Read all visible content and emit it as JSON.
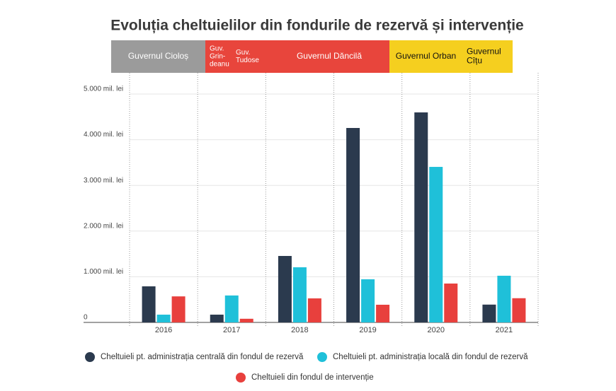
{
  "chart_data": {
    "type": "bar",
    "title": "Evoluția cheltuielilor din fondurile de rezervă și intervenție",
    "governments": [
      {
        "lines": [
          "Guvernul Cioloș"
        ],
        "color": "#9b9b9b",
        "text_color": "#ffffff"
      },
      {
        "lines": [
          "Guv.",
          "Grin-",
          "deanu"
        ],
        "color": "#e8453c",
        "text_color": "#ffffff"
      },
      {
        "lines": [
          "Guv.",
          "Tudose"
        ],
        "color": "#e8453c",
        "text_color": "#ffffff"
      },
      {
        "lines": [
          "Guvernul Dăncilă"
        ],
        "color": "#e8453c",
        "text_color": "#ffffff"
      },
      {
        "lines": [
          "Guvernul Orban"
        ],
        "color": "#f5cf1f",
        "text_color": "#111111"
      },
      {
        "lines": [
          "Guvernul",
          "Cîțu"
        ],
        "color": "#f5cf1f",
        "text_color": "#111111"
      }
    ],
    "categories": [
      "2016",
      "2017",
      "2018",
      "2019",
      "2020",
      "2021"
    ],
    "series": [
      {
        "name": "Cheltuieli pt. administrația centrală din fondul de rezervă",
        "color": "#2b3a4e",
        "values": [
          790,
          170,
          1455,
          4257,
          4598,
          390
        ]
      },
      {
        "name": "Cheltuieli pt. administrația locală din fondul de rezervă",
        "color": "#1fc0d9",
        "values": [
          170,
          590,
          1207,
          944,
          3405,
          1022
        ]
      },
      {
        "name": "Cheltuieli din fondul de intervenție",
        "color": "#e8403d",
        "values": [
          570,
          80,
          526,
          387,
          851,
          530
        ]
      }
    ],
    "ylim": [
      0,
      5000
    ],
    "yticks": [
      0,
      {
        "value": 1000,
        "label": "1.000 mil. lei"
      },
      {
        "value": 2000,
        "label": "2.000 mil. lei"
      },
      {
        "value": 3000,
        "label": "3.000 mil. lei"
      },
      {
        "value": 4000,
        "label": "4.000 mil. lei"
      },
      {
        "value": 5000,
        "label": "5.000 mil. lei"
      }
    ],
    "grid": true
  }
}
